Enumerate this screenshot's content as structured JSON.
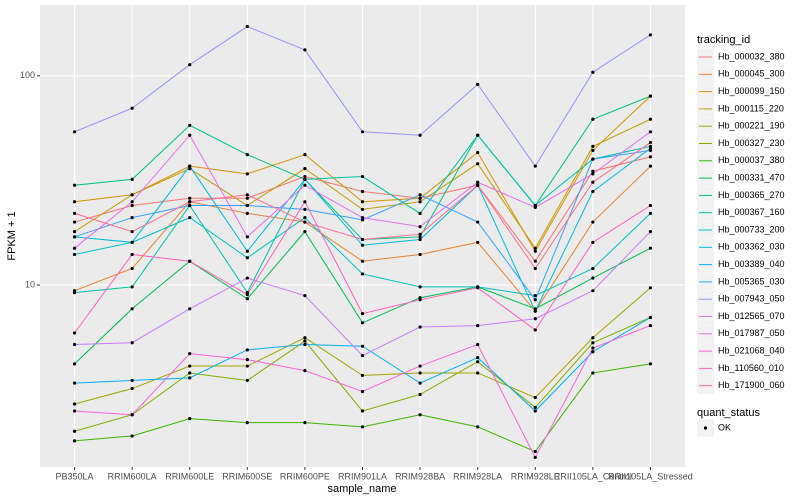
{
  "chart_data": {
    "type": "line",
    "log_y": true,
    "grid": true,
    "x_label": "sample_name",
    "y_label": "FPKM + 1",
    "legend_title": "tracking_id",
    "legend_position": "right",
    "shape_legend": {
      "title": "quant_status",
      "labels": [
        "OK"
      ]
    },
    "categories": [
      "PB350LA",
      "RRIM600LA",
      "RRIM600LE",
      "RRIM600SE",
      "RRIM600PE",
      "RRIM901LA",
      "RRIM928BA",
      "RRIM928LA",
      "RRIM928LE",
      "RRII105LA_Control",
      "RRII105LA_Stressed"
    ],
    "ylim": [
      1.35,
      218
    ],
    "yticks": [
      10,
      100
    ],
    "series": [
      {
        "name": "Hb_000032_380",
        "color": "#F8766D",
        "values": [
          20,
          24,
          26,
          26,
          33,
          28,
          26,
          30,
          13,
          35,
          41
        ]
      },
      {
        "name": "Hb_000045_300",
        "color": "#EA8331",
        "values": [
          9.4,
          12,
          25,
          22,
          20,
          13,
          14,
          16,
          7.5,
          20,
          37
        ]
      },
      {
        "name": "Hb_000099_150",
        "color": "#D89000",
        "values": [
          25,
          27,
          37,
          34,
          42,
          25,
          26,
          43,
          14.5,
          44,
          80
        ]
      },
      {
        "name": "Hb_000115_220",
        "color": "#C09B00",
        "values": [
          18,
          27,
          36,
          24,
          36,
          23,
          25,
          38,
          15,
          46,
          62
        ]
      },
      {
        "name": "Hb_000221_190",
        "color": "#A3A500",
        "values": [
          2.7,
          3.2,
          4.1,
          4.1,
          5.6,
          3.7,
          3.8,
          3.8,
          2.9,
          5.6,
          9.7
        ]
      },
      {
        "name": "Hb_000327_230",
        "color": "#7CAE00",
        "values": [
          2.0,
          2.4,
          3.8,
          3.5,
          5.4,
          2.5,
          3.0,
          4.3,
          2.6,
          5.3,
          7.0
        ]
      },
      {
        "name": "Hb_000037_380",
        "color": "#39B600",
        "values": [
          1.8,
          1.9,
          2.3,
          2.2,
          2.2,
          2.1,
          2.4,
          2.1,
          1.6,
          3.8,
          4.2
        ]
      },
      {
        "name": "Hb_000331_470",
        "color": "#00BB4E",
        "values": [
          4.2,
          7.7,
          13,
          8.6,
          18,
          6.6,
          8.7,
          9.8,
          7.7,
          10.8,
          15
        ]
      },
      {
        "name": "Hb_000365_270",
        "color": "#00BF7D",
        "values": [
          30,
          32,
          58,
          42,
          32,
          16.5,
          17,
          52,
          24,
          62,
          80
        ]
      },
      {
        "name": "Hb_000367_160",
        "color": "#00C1A3",
        "values": [
          9.2,
          9.8,
          24,
          9.2,
          32,
          33,
          22,
          52,
          24,
          40,
          46
        ]
      },
      {
        "name": "Hb_000733_200",
        "color": "#00BFC4",
        "values": [
          14,
          16,
          21,
          13.5,
          21,
          11.3,
          9.8,
          9.8,
          8.9,
          12,
          22
        ]
      },
      {
        "name": "Hb_003362_030",
        "color": "#00BAE0",
        "values": [
          17,
          16,
          37,
          14.5,
          32,
          15.5,
          16.5,
          30,
          7.5,
          28,
          45
        ]
      },
      {
        "name": "Hb_003389_040",
        "color": "#00B0F6",
        "values": [
          3.4,
          3.5,
          3.6,
          4.9,
          5.2,
          5.1,
          3.4,
          4.5,
          2.5,
          4.8,
          7.0
        ]
      },
      {
        "name": "Hb_005365_030",
        "color": "#35A2FF",
        "values": [
          17,
          21,
          24,
          24,
          23,
          20.5,
          27,
          20,
          8.5,
          40,
          44
        ]
      },
      {
        "name": "Hb_007943_050",
        "color": "#9590FF",
        "values": [
          54,
          70,
          113,
          172,
          133,
          54,
          52,
          91,
          37,
          104,
          157
        ]
      },
      {
        "name": "Hb_012565_070",
        "color": "#C77CFF",
        "values": [
          5.2,
          5.3,
          7.7,
          10.8,
          8.9,
          4.6,
          6.3,
          6.4,
          6.9,
          9.4,
          18
        ]
      },
      {
        "name": "Hb_017987_050",
        "color": "#E76BF3",
        "values": [
          15,
          25,
          52,
          17,
          30,
          21,
          19,
          31,
          23.5,
          34,
          54
        ]
      },
      {
        "name": "Hb_021068_040",
        "color": "#FA62DB",
        "values": [
          2.5,
          2.4,
          4.7,
          4.4,
          3.9,
          3.1,
          4.1,
          5.2,
          1.5,
          5.0,
          6.4
        ]
      },
      {
        "name": "Hb_110560_010",
        "color": "#FF62BC",
        "values": [
          5.9,
          14,
          13,
          9,
          25,
          7.3,
          8.5,
          9.7,
          6.1,
          16,
          24
        ]
      },
      {
        "name": "Hb_171900_060",
        "color": "#FF6C91",
        "values": [
          22,
          18,
          25,
          27,
          20,
          16.5,
          17.5,
          30,
          12,
          31,
          48
        ]
      }
    ]
  }
}
